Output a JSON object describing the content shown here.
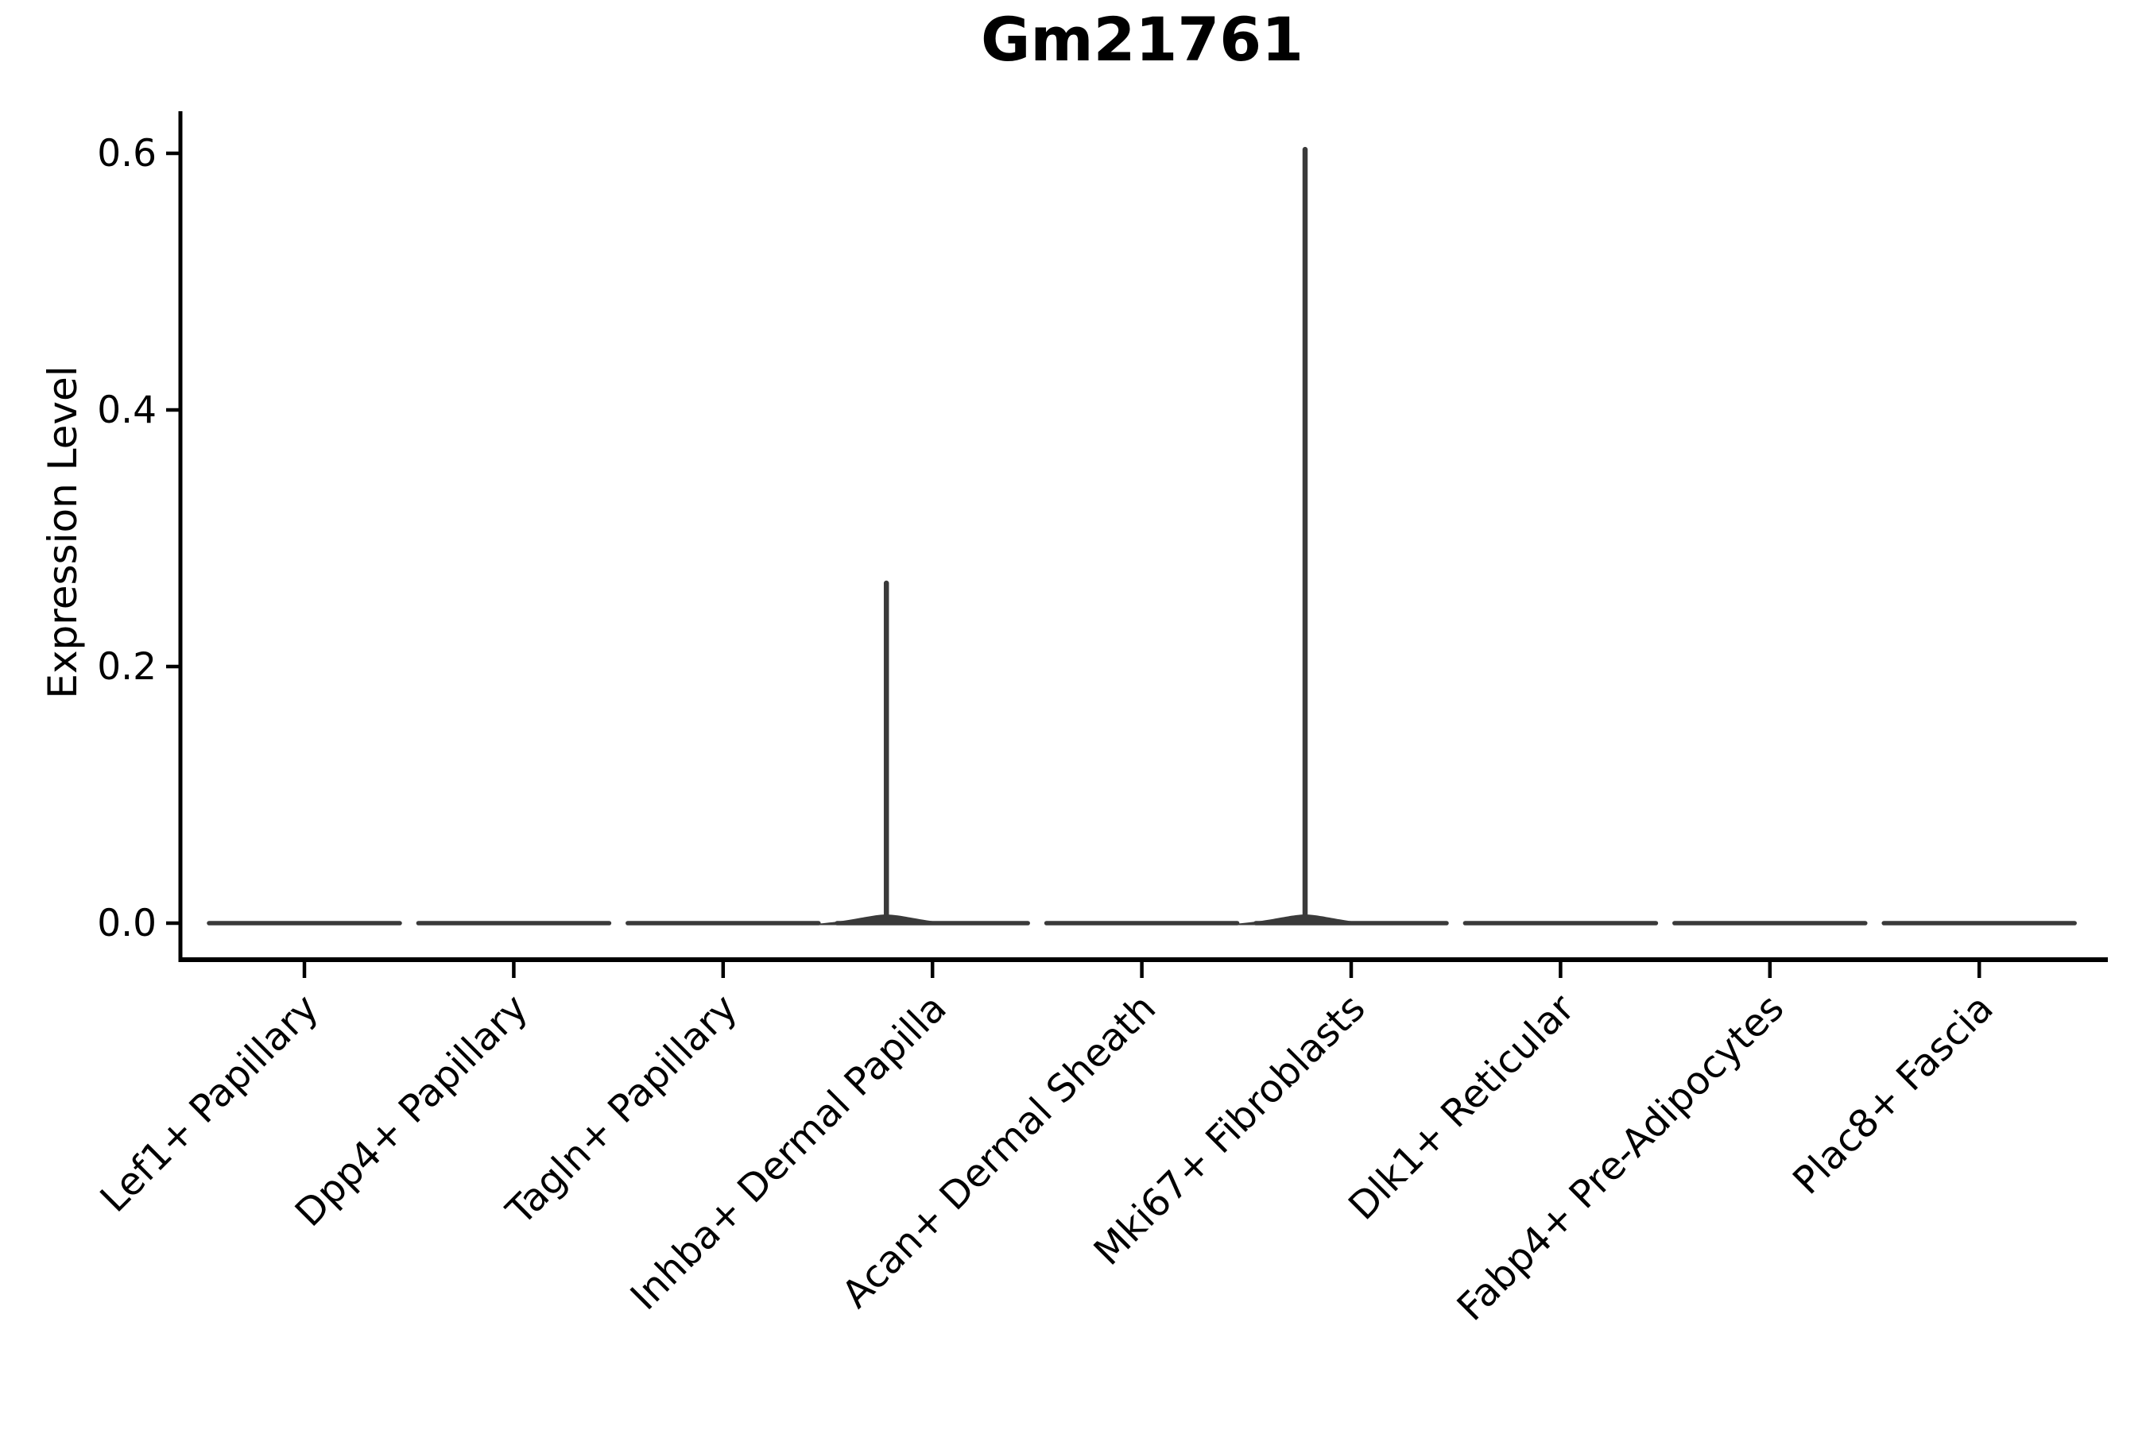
{
  "figure": {
    "background": "#FFFFFF"
  },
  "chart_data": {
    "type": "violin",
    "title": "Gm21761",
    "xlabel": "",
    "ylabel": "Expression Level",
    "ylim": [
      0.0,
      0.62
    ],
    "yticks": [
      0.0,
      0.2,
      0.4,
      0.6
    ],
    "ytick_labels": [
      "0.0",
      "0.2",
      "0.4",
      "0.6"
    ],
    "grid": false,
    "legend": "none",
    "categories": [
      "Lef1+ Papillary",
      "Dpp4+ Papillary",
      "Tagln+ Papillary",
      "Inhba+ Dermal Papilla",
      "Acan+ Dermal Sheath",
      "Mki67+ Fibroblasts",
      "Dlk1+ Reticular",
      "Fabp4+ Pre-Adipocytes",
      "Plac8+ Fascia"
    ],
    "violins": [
      {
        "category": "Lef1+ Papillary",
        "density_mode": 0.0,
        "max_expression": 0.0
      },
      {
        "category": "Dpp4+ Papillary",
        "density_mode": 0.0,
        "max_expression": 0.0
      },
      {
        "category": "Tagln+ Papillary",
        "density_mode": 0.0,
        "max_expression": 0.0
      },
      {
        "category": "Inhba+ Dermal Papilla",
        "density_mode": 0.0,
        "max_expression": 0.265
      },
      {
        "category": "Acan+ Dermal Sheath",
        "density_mode": 0.0,
        "max_expression": 0.0
      },
      {
        "category": "Mki67+ Fibroblasts",
        "density_mode": 0.0,
        "max_expression": 0.603
      },
      {
        "category": "Dlk1+ Reticular",
        "density_mode": 0.0,
        "max_expression": 0.0
      },
      {
        "category": "Fabp4+ Pre-Adipocytes",
        "density_mode": 0.0,
        "max_expression": 0.0
      },
      {
        "category": "Plac8+ Fascia",
        "density_mode": 0.0,
        "max_expression": 0.0
      }
    ],
    "colors": {
      "violin_stroke": "#3A3A3A",
      "axis": "#000000",
      "text": "#000000"
    }
  }
}
